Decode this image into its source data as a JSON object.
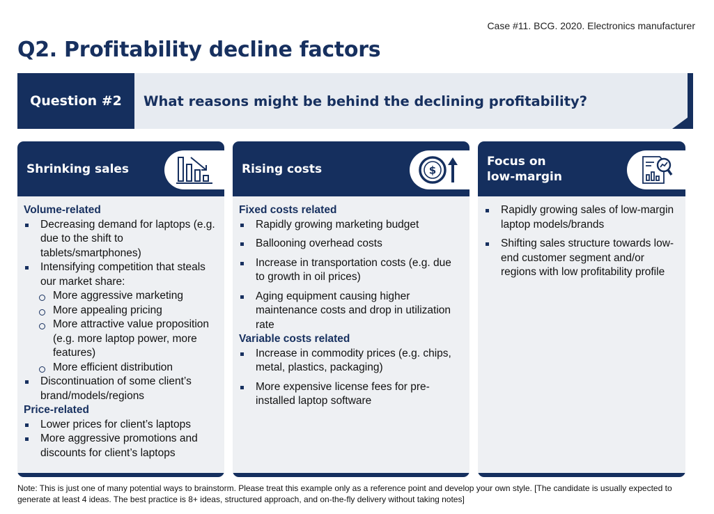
{
  "case_ref": "Case #11. BCG. 2020. Electronics manufacturer",
  "title": "Q2. Profitability decline factors",
  "question": {
    "label": "Question #2",
    "text": "What reasons might be behind the declining profitability?"
  },
  "cards": [
    {
      "title": "Shrinking sales",
      "icon": "declining-bar-chart-icon",
      "sections": [
        {
          "heading": "Volume-related",
          "bullets": [
            {
              "text": "Decreasing demand for laptops (e.g. due to the shift to tablets/smartphones)"
            },
            {
              "text": "Intensifying competition that steals our market share:",
              "sub": [
                "More aggressive marketing",
                "More appealing pricing",
                "More attractive value proposition (e.g. more laptop power, more features)",
                "More efficient distribution"
              ]
            },
            {
              "text": "Discontinuation of some client’s brand/models/regions"
            }
          ]
        },
        {
          "heading": "Price-related",
          "bullets": [
            {
              "text": "Lower prices for client’s laptops"
            },
            {
              "text": "More aggressive promotions and discounts for client’s laptops"
            }
          ]
        }
      ]
    },
    {
      "title": "Rising costs",
      "icon": "dollar-coin-up-arrow-icon",
      "sections": [
        {
          "heading": "Fixed costs related",
          "bullets": [
            {
              "text": "Rapidly growing marketing budget"
            },
            {
              "text": "Ballooning overhead costs"
            },
            {
              "text": "Increase in transportation costs (e.g. due to growth in oil prices)"
            },
            {
              "text": "Aging equipment causing higher maintenance costs and drop in utilization rate"
            }
          ]
        },
        {
          "heading": "Variable costs related",
          "bullets": [
            {
              "text": "Increase in commodity prices (e.g. chips, metal, plastics, packaging)"
            },
            {
              "text": "More expensive license fees for pre-installed laptop software"
            }
          ]
        }
      ]
    },
    {
      "title_lines": [
        "Focus on",
        "low-margin"
      ],
      "icon": "report-magnifier-icon",
      "sections": [
        {
          "heading": "",
          "bullets": [
            {
              "text": "Rapidly growing sales of low-margin laptop models/brands"
            },
            {
              "text": "Shifting sales structure towards low-end customer segment and/or regions with low profitability profile"
            }
          ]
        }
      ]
    }
  ],
  "note": "Note: This is just one of many potential ways to brainstorm. Please treat this example only as a reference point and develop your own style. [The candidate is usually expected to generate at least 4 ideas. The best practice is 8+ ideas, structured approach, and on-the-fly delivery without taking notes]",
  "colors": {
    "navy": "#152f5e",
    "panel": "#eef0f3",
    "question_bg": "#e7ebf1"
  }
}
